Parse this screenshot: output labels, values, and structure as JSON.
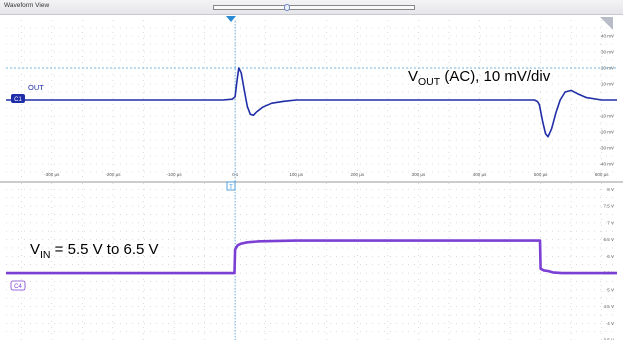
{
  "window": {
    "title": "Waveform View"
  },
  "chart_data": [
    {
      "type": "line",
      "title": "",
      "annotation": {
        "base": "V",
        "sub": "OUT",
        "rest": " (AC), 10 mV/div"
      },
      "channel_badge": "C1",
      "series": [
        {
          "name": "OUT",
          "color": "#1f2ea8"
        }
      ],
      "xlabel": "",
      "ylabel": "",
      "x_unit": "µs",
      "y_unit": "mV",
      "xlim": [
        -375,
        625
      ],
      "ylim": [
        -50,
        50
      ],
      "x_ticks": [
        "-300 µs",
        "-200 µs",
        "-100 µs",
        "0 s",
        "100 µs",
        "200 µs",
        "300 µs",
        "400 µs",
        "500 µs",
        "600 µs"
      ],
      "x_tick_values": [
        -300,
        -200,
        -100,
        0,
        100,
        200,
        300,
        400,
        500,
        600
      ],
      "y_ticks": [
        "40 mV",
        "30 mV",
        "20 mV",
        "10 mV",
        "-10 mV",
        "-20 mV",
        "-30 mV",
        "-40 mV"
      ],
      "y_tick_values": [
        40,
        30,
        20,
        10,
        -10,
        -20,
        -30,
        -40
      ],
      "cursor_level_mV": 20,
      "trace": {
        "x": [
          -375,
          -300,
          -200,
          -100,
          -20,
          -5,
          0,
          3,
          6,
          10,
          15,
          20,
          25,
          30,
          35,
          45,
          60,
          80,
          100,
          150,
          200,
          300,
          400,
          480,
          490,
          495,
          498,
          503,
          508,
          512,
          518,
          525,
          532,
          540,
          550,
          560,
          575,
          600,
          625
        ],
        "y": [
          0,
          0,
          0,
          0,
          0,
          0.5,
          2,
          12,
          20,
          17,
          6,
          -4,
          -9,
          -9.5,
          -7.5,
          -4.5,
          -2,
          -0.8,
          0,
          0,
          0,
          0,
          0,
          0,
          0,
          -1,
          -3,
          -13,
          -21,
          -23,
          -18,
          -8,
          0,
          5,
          6,
          4,
          1.5,
          0,
          0
        ]
      }
    },
    {
      "type": "line",
      "title": "",
      "annotation": {
        "base": "V",
        "sub": "IN",
        "rest": " = 5.5 V to 6.5 V"
      },
      "channel_badge": "C4",
      "series": [
        {
          "name": "",
          "color": "#7b3fd4"
        }
      ],
      "xlabel": "",
      "ylabel": "",
      "x_unit": "µs",
      "y_unit": "V",
      "xlim": [
        -375,
        625
      ],
      "ylim": [
        3.5,
        8.25
      ],
      "y_ticks": [
        "8 V",
        "7.5 V",
        "7 V",
        "6.5 V",
        "6 V",
        "5.5 V",
        "5 V",
        "4.5 V",
        "4 V",
        "3.5 V"
      ],
      "y_tick_values": [
        8,
        7.5,
        7,
        6.5,
        6,
        5.5,
        5,
        4.5,
        4,
        3.5
      ],
      "trace": {
        "x": [
          -375,
          -1,
          0,
          4,
          10,
          20,
          40,
          100,
          300,
          499,
          500,
          505,
          512,
          520,
          535,
          560,
          625
        ],
        "y": [
          5.5,
          5.5,
          6.2,
          6.33,
          6.38,
          6.42,
          6.45,
          6.47,
          6.47,
          6.47,
          5.63,
          5.58,
          5.56,
          5.52,
          5.5,
          5.5,
          5.5
        ]
      }
    }
  ]
}
